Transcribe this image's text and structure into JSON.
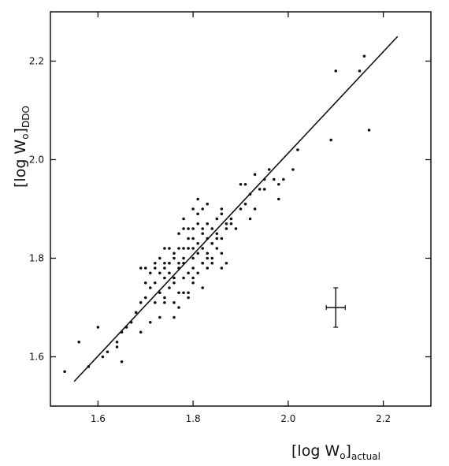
{
  "chart_data": {
    "type": "scatter",
    "title": "",
    "xlabel": {
      "main": "[log W",
      "sub_o": "o",
      "close": "]",
      "sub": "actual"
    },
    "ylabel": {
      "main": "[log W",
      "sub_o": "o",
      "close": "]",
      "sub": "DDO"
    },
    "xlim": [
      1.5,
      2.3
    ],
    "ylim": [
      1.5,
      2.3
    ],
    "x_ticks": [
      1.6,
      1.8,
      2.0,
      2.2
    ],
    "y_ticks": [
      1.6,
      1.8,
      2.0,
      2.2
    ],
    "x_tick_labels": [
      "1.6",
      "1.8",
      "2.0",
      "2.2"
    ],
    "y_tick_labels": [
      "1.6",
      "1.8",
      "2.0",
      "2.2"
    ],
    "grid": false,
    "fit_line": {
      "x": [
        1.55,
        2.23
      ],
      "y": [
        1.55,
        2.25
      ]
    },
    "error_bar": {
      "x": 2.1,
      "y": 1.7,
      "x_err": 0.02,
      "y_err": 0.04
    },
    "points": [
      [
        1.53,
        1.57
      ],
      [
        1.56,
        1.63
      ],
      [
        1.58,
        1.58
      ],
      [
        1.6,
        1.66
      ],
      [
        1.61,
        1.6
      ],
      [
        1.62,
        1.61
      ],
      [
        1.64,
        1.62
      ],
      [
        1.64,
        1.63
      ],
      [
        1.65,
        1.65
      ],
      [
        1.65,
        1.59
      ],
      [
        1.66,
        1.66
      ],
      [
        1.67,
        1.67
      ],
      [
        1.68,
        1.69
      ],
      [
        1.69,
        1.71
      ],
      [
        1.69,
        1.65
      ],
      [
        1.7,
        1.72
      ],
      [
        1.7,
        1.78
      ],
      [
        1.71,
        1.67
      ],
      [
        1.71,
        1.77
      ],
      [
        1.72,
        1.75
      ],
      [
        1.72,
        1.79
      ],
      [
        1.73,
        1.73
      ],
      [
        1.73,
        1.8
      ],
      [
        1.73,
        1.68
      ],
      [
        1.74,
        1.76
      ],
      [
        1.74,
        1.78
      ],
      [
        1.74,
        1.71
      ],
      [
        1.74,
        1.72
      ],
      [
        1.75,
        1.74
      ],
      [
        1.75,
        1.79
      ],
      [
        1.75,
        1.82
      ],
      [
        1.75,
        1.77
      ],
      [
        1.76,
        1.68
      ],
      [
        1.76,
        1.75
      ],
      [
        1.76,
        1.8
      ],
      [
        1.76,
        1.76
      ],
      [
        1.77,
        1.7
      ],
      [
        1.77,
        1.78
      ],
      [
        1.77,
        1.73
      ],
      [
        1.77,
        1.82
      ],
      [
        1.77,
        1.85
      ],
      [
        1.78,
        1.79
      ],
      [
        1.78,
        1.76
      ],
      [
        1.78,
        1.73
      ],
      [
        1.78,
        1.8
      ],
      [
        1.78,
        1.88
      ],
      [
        1.79,
        1.77
      ],
      [
        1.79,
        1.82
      ],
      [
        1.79,
        1.72
      ],
      [
        1.79,
        1.86
      ],
      [
        1.8,
        1.82
      ],
      [
        1.8,
        1.8
      ],
      [
        1.8,
        1.76
      ],
      [
        1.8,
        1.9
      ],
      [
        1.8,
        1.84
      ],
      [
        1.81,
        1.81
      ],
      [
        1.81,
        1.83
      ],
      [
        1.81,
        1.77
      ],
      [
        1.81,
        1.87
      ],
      [
        1.81,
        1.92
      ],
      [
        1.82,
        1.79
      ],
      [
        1.82,
        1.82
      ],
      [
        1.82,
        1.85
      ],
      [
        1.82,
        1.79
      ],
      [
        1.82,
        1.74
      ],
      [
        1.83,
        1.8
      ],
      [
        1.83,
        1.87
      ],
      [
        1.83,
        1.81
      ],
      [
        1.83,
        1.78
      ],
      [
        1.84,
        1.83
      ],
      [
        1.84,
        1.86
      ],
      [
        1.84,
        1.83
      ],
      [
        1.84,
        1.79
      ],
      [
        1.85,
        1.85
      ],
      [
        1.85,
        1.88
      ],
      [
        1.85,
        1.82
      ],
      [
        1.86,
        1.84
      ],
      [
        1.86,
        1.81
      ],
      [
        1.86,
        1.9
      ],
      [
        1.86,
        1.89
      ],
      [
        1.87,
        1.87
      ],
      [
        1.87,
        1.79
      ],
      [
        1.88,
        1.88
      ],
      [
        1.89,
        1.86
      ],
      [
        1.9,
        1.9
      ],
      [
        1.91,
        1.91
      ],
      [
        1.91,
        1.95
      ],
      [
        1.92,
        1.88
      ],
      [
        1.92,
        1.93
      ],
      [
        1.93,
        1.9
      ],
      [
        1.94,
        1.94
      ],
      [
        1.95,
        1.96
      ],
      [
        1.96,
        1.98
      ],
      [
        1.97,
        1.96
      ],
      [
        1.98,
        1.95
      ],
      [
        1.98,
        1.92
      ],
      [
        1.99,
        1.96
      ],
      [
        2.01,
        1.98
      ],
      [
        2.02,
        2.02
      ],
      [
        2.09,
        2.04
      ],
      [
        2.1,
        2.18
      ],
      [
        2.15,
        2.18
      ],
      [
        2.16,
        2.21
      ],
      [
        2.17,
        2.06
      ],
      [
        1.75,
        1.79
      ],
      [
        1.74,
        1.82
      ],
      [
        1.73,
        1.77
      ],
      [
        1.72,
        1.78
      ],
      [
        1.79,
        1.84
      ],
      [
        1.8,
        1.86
      ],
      [
        1.78,
        1.86
      ],
      [
        1.81,
        1.89
      ],
      [
        1.82,
        1.9
      ],
      [
        1.83,
        1.91
      ],
      [
        1.76,
        1.81
      ],
      [
        1.77,
        1.79
      ],
      [
        1.79,
        1.73
      ],
      [
        1.8,
        1.75
      ],
      [
        1.83,
        1.84
      ],
      [
        1.85,
        1.84
      ],
      [
        1.87,
        1.86
      ],
      [
        1.88,
        1.87
      ],
      [
        1.7,
        1.75
      ],
      [
        1.71,
        1.74
      ],
      [
        1.69,
        1.78
      ],
      [
        1.72,
        1.71
      ],
      [
        1.74,
        1.79
      ],
      [
        1.76,
        1.71
      ],
      [
        1.78,
        1.82
      ],
      [
        1.8,
        1.78
      ],
      [
        1.82,
        1.86
      ],
      [
        1.84,
        1.8
      ],
      [
        1.86,
        1.78
      ],
      [
        1.9,
        1.95
      ],
      [
        1.93,
        1.97
      ],
      [
        1.95,
        1.94
      ]
    ]
  }
}
